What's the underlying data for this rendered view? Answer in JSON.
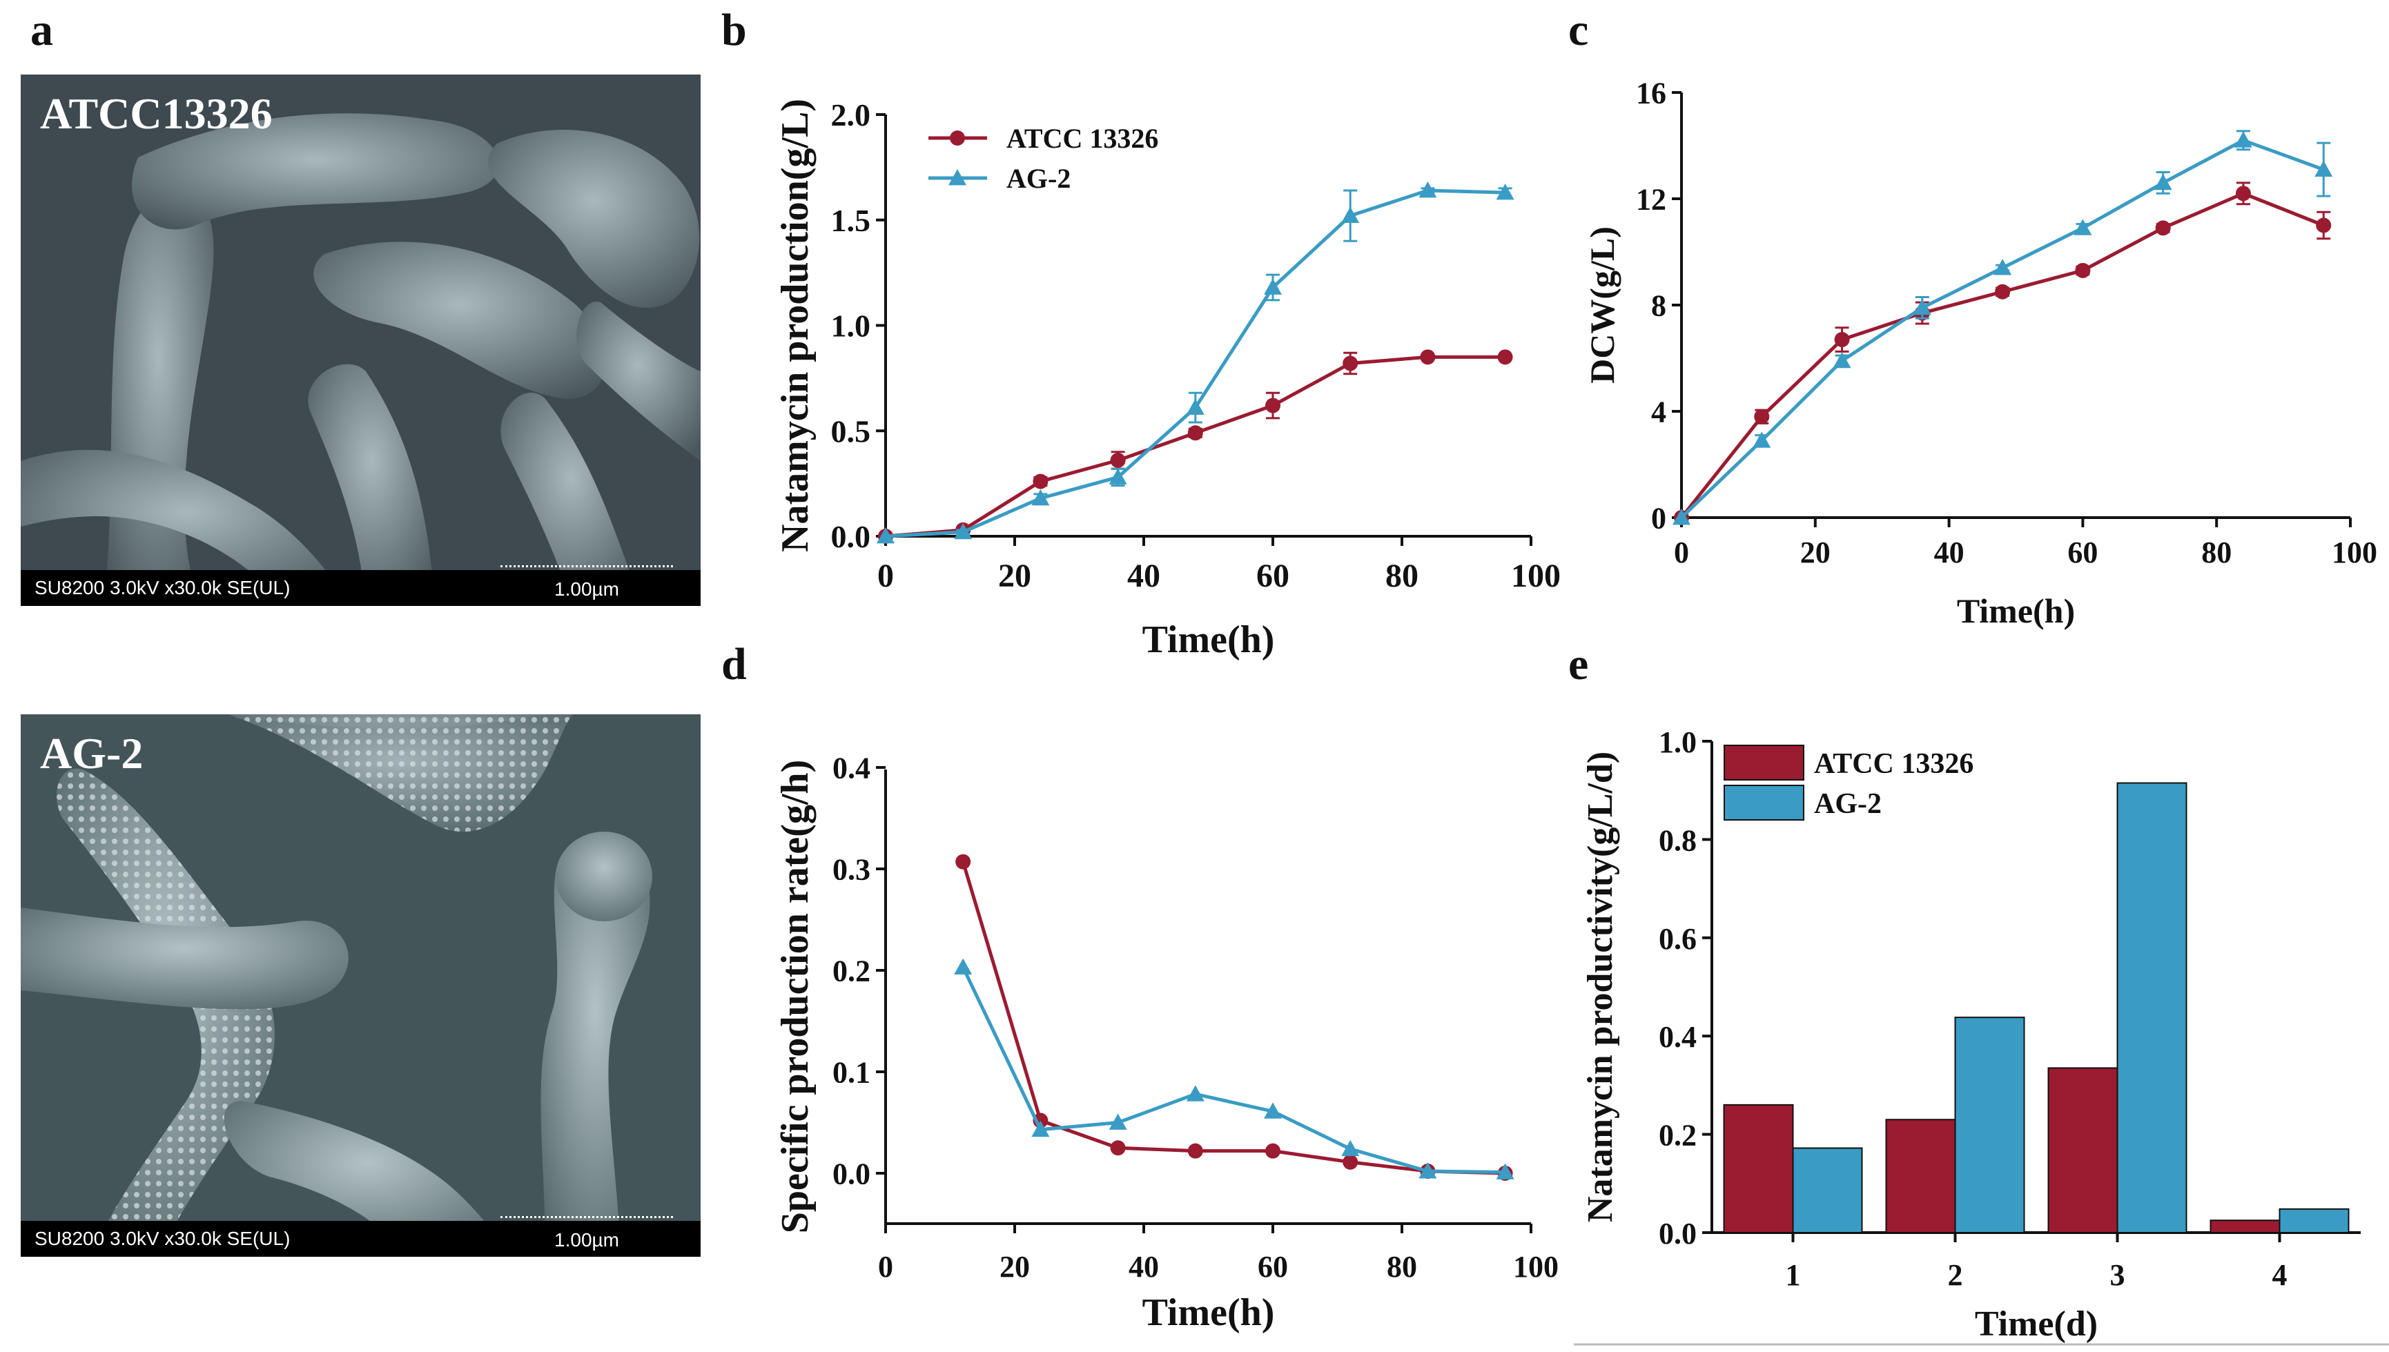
{
  "panel_labels": {
    "a": "a",
    "b": "b",
    "c": "c",
    "d": "d",
    "e": "e"
  },
  "sem": [
    {
      "label": "ATCC13326",
      "info": "SU8200 3.0kV x30.0k SE(UL)",
      "scale": "1.00µm"
    },
    {
      "label": "AG-2",
      "info": "SU8200 3.0kV x30.0k SE(UL)",
      "scale": "1.00µm"
    }
  ],
  "colors": {
    "atcc": "#9b1b30",
    "ag2": "#3a9cc4"
  },
  "chart_data": [
    {
      "id": "b",
      "type": "line",
      "xlabel": "Time(h)",
      "ylabel": "Natamycin production(g/L)",
      "xlim": [
        0,
        100
      ],
      "ylim": [
        0,
        2.0
      ],
      "xticks": [
        0,
        20,
        40,
        60,
        80,
        100
      ],
      "yticks": [
        0.0,
        0.5,
        1.0,
        1.5,
        2.0
      ],
      "ytick_labels": [
        "0.0",
        "0.5",
        "1.0",
        "1.5",
        "2.0"
      ],
      "legend": "top-left",
      "series": [
        {
          "name": "ATCC 13326",
          "marker": "circle",
          "x": [
            0,
            12,
            24,
            36,
            48,
            60,
            72,
            84,
            96
          ],
          "y": [
            0.0,
            0.03,
            0.26,
            0.36,
            0.49,
            0.62,
            0.82,
            0.85,
            0.85
          ],
          "err": [
            0,
            0.01,
            0.02,
            0.04,
            0.02,
            0.06,
            0.05,
            0.01,
            0.01
          ]
        },
        {
          "name": "AG-2",
          "marker": "triangle",
          "x": [
            0,
            12,
            24,
            36,
            48,
            60,
            72,
            84,
            96
          ],
          "y": [
            0.0,
            0.02,
            0.18,
            0.28,
            0.61,
            1.18,
            1.52,
            1.64,
            1.63
          ],
          "err": [
            0,
            0.01,
            0.02,
            0.04,
            0.07,
            0.06,
            0.12,
            0.01,
            0.02
          ]
        }
      ]
    },
    {
      "id": "c",
      "type": "line",
      "xlabel": "Time(h)",
      "ylabel": "DCW(g/L)",
      "xlim": [
        0,
        100
      ],
      "ylim": [
        0,
        16
      ],
      "xticks": [
        0,
        20,
        40,
        60,
        80,
        100
      ],
      "yticks": [
        0,
        4,
        8,
        12,
        16
      ],
      "ytick_labels": [
        "0",
        "4",
        "8",
        "12",
        "16"
      ],
      "series": [
        {
          "name": "ATCC 13326",
          "marker": "circle",
          "x": [
            0,
            12,
            24,
            36,
            48,
            60,
            72,
            84,
            96
          ],
          "y": [
            0.0,
            3.8,
            6.7,
            7.7,
            8.5,
            9.3,
            10.9,
            12.2,
            11.0
          ],
          "err": [
            0,
            0.25,
            0.45,
            0.4,
            0.15,
            0.15,
            0.15,
            0.4,
            0.5
          ]
        },
        {
          "name": "AG-2",
          "marker": "triangle",
          "x": [
            0,
            12,
            24,
            36,
            48,
            60,
            72,
            84,
            96
          ],
          "y": [
            0.0,
            2.9,
            5.9,
            7.9,
            9.4,
            10.9,
            12.6,
            14.2,
            13.1
          ],
          "err": [
            0,
            0.2,
            0.2,
            0.4,
            0.1,
            0.15,
            0.4,
            0.35,
            1.0
          ]
        }
      ]
    },
    {
      "id": "d",
      "type": "line",
      "xlabel": "Time(h)",
      "ylabel": "Specific production rate(g/h)",
      "xlim": [
        0,
        100
      ],
      "ylim": [
        -0.05,
        0.4
      ],
      "xticks": [
        0,
        20,
        40,
        60,
        80,
        100
      ],
      "yticks": [
        0.0,
        0.1,
        0.2,
        0.3,
        0.4
      ],
      "ytick_labels": [
        "0.0",
        "0.1",
        "0.2",
        "0.3",
        "0.4"
      ],
      "series": [
        {
          "name": "ATCC 13326",
          "marker": "circle",
          "x": [
            12,
            24,
            36,
            48,
            60,
            72,
            84,
            96
          ],
          "y": [
            0.307,
            0.052,
            0.025,
            0.022,
            0.022,
            0.011,
            0.002,
            0.0
          ]
        },
        {
          "name": "AG-2",
          "marker": "triangle",
          "x": [
            12,
            24,
            36,
            48,
            60,
            72,
            84,
            96
          ],
          "y": [
            0.203,
            0.043,
            0.05,
            0.078,
            0.061,
            0.024,
            0.002,
            0.001
          ]
        }
      ]
    },
    {
      "id": "e",
      "type": "bar",
      "xlabel": "Time(d)",
      "ylabel": "Natamycin productivity(g/L/d)",
      "categories": [
        "1",
        "2",
        "3",
        "4"
      ],
      "ylim": [
        0,
        1.0
      ],
      "yticks": [
        0.0,
        0.2,
        0.4,
        0.6,
        0.8,
        1.0
      ],
      "ytick_labels": [
        "0.0",
        "0.2",
        "0.4",
        "0.6",
        "0.8",
        "1.0"
      ],
      "legend": "top-left",
      "series": [
        {
          "name": "ATCC 13326",
          "values": [
            0.26,
            0.23,
            0.335,
            0.025
          ]
        },
        {
          "name": "AG-2",
          "values": [
            0.172,
            0.438,
            0.915,
            0.048
          ]
        }
      ]
    }
  ]
}
